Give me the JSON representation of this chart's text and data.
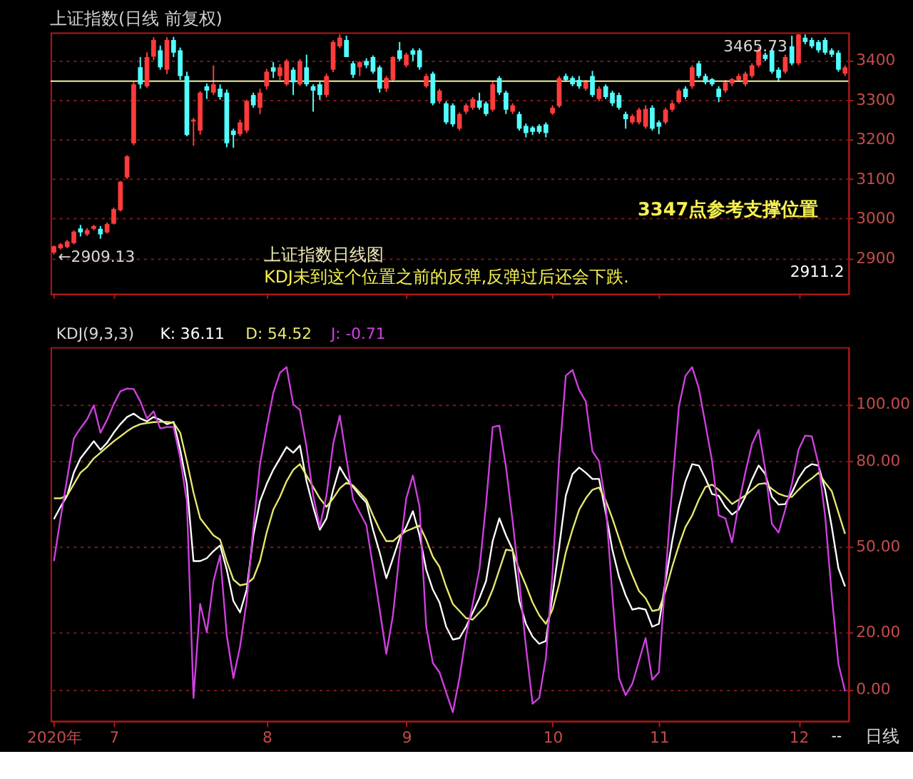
{
  "chart_data": [
    {
      "type": "candlestick",
      "title": "上证指数(日线 前复权)",
      "categories": [
        "2020年",
        null,
        null,
        null,
        null,
        null,
        null,
        null,
        null,
        "7",
        null,
        null,
        null,
        null,
        null,
        null,
        null,
        null,
        null,
        null,
        null,
        null,
        null,
        null,
        null,
        null,
        null,
        null,
        null,
        null,
        null,
        null,
        "8",
        null,
        null,
        null,
        null,
        null,
        null,
        null,
        null,
        null,
        null,
        null,
        null,
        null,
        null,
        null,
        null,
        null,
        null,
        null,
        null,
        "9",
        null,
        null,
        null,
        null,
        null,
        null,
        null,
        null,
        null,
        null,
        null,
        null,
        null,
        null,
        null,
        null,
        null,
        null,
        null,
        null,
        null,
        "10",
        null,
        null,
        null,
        null,
        null,
        null,
        null,
        null,
        null,
        null,
        null,
        null,
        null,
        null,
        null,
        "11",
        null,
        null,
        null,
        null,
        null,
        null,
        null,
        null,
        null,
        null,
        null,
        null,
        null,
        null,
        null,
        null,
        null,
        null,
        null,
        null,
        "12",
        null,
        null,
        null,
        null,
        null,
        null,
        null
      ],
      "ohlc": [
        [
          2914,
          2932,
          2909.13,
          2930
        ],
        [
          2925,
          2938,
          2922,
          2935
        ],
        [
          2928,
          2946,
          2925,
          2942
        ],
        [
          2938,
          2970,
          2935,
          2967
        ],
        [
          2975,
          2984,
          2955,
          2965
        ],
        [
          2960,
          2976,
          2956,
          2971
        ],
        [
          2974,
          2984,
          2970,
          2981
        ],
        [
          2974,
          2981,
          2949,
          2960
        ],
        [
          2965,
          2990,
          2962,
          2986
        ],
        [
          2987,
          3028,
          2985,
          3024
        ],
        [
          3021,
          3095,
          3018,
          3093
        ],
        [
          3104,
          3160,
          3100,
          3157
        ],
        [
          3190,
          3345,
          3185,
          3339
        ],
        [
          3382,
          3408,
          3328,
          3339
        ],
        [
          3334,
          3420,
          3330,
          3408
        ],
        [
          3409,
          3458,
          3400,
          3451
        ],
        [
          3425,
          3437,
          3376,
          3382
        ],
        [
          3376,
          3458,
          3365,
          3451
        ],
        [
          3451,
          3459,
          3408,
          3419
        ],
        [
          3425,
          3432,
          3350,
          3360
        ],
        [
          3360,
          3371,
          3208,
          3211
        ],
        [
          3245,
          3254,
          3184,
          3250
        ],
        [
          3222,
          3322,
          3212,
          3318
        ],
        [
          3334,
          3341,
          3302,
          3323
        ],
        [
          3318,
          3387,
          3312,
          3339
        ],
        [
          3328,
          3339,
          3300,
          3307
        ],
        [
          3318,
          3326,
          3180,
          3190
        ],
        [
          3222,
          3227,
          3179,
          3211
        ],
        [
          3213,
          3250,
          3208,
          3243
        ],
        [
          3222,
          3300,
          3216,
          3297
        ],
        [
          3312,
          3318,
          3280,
          3286
        ],
        [
          3280,
          3328,
          3264,
          3318
        ],
        [
          3334,
          3378,
          3326,
          3371
        ],
        [
          3382,
          3395,
          3355,
          3371
        ],
        [
          3360,
          3390,
          3350,
          3382
        ],
        [
          3339,
          3403,
          3335,
          3398
        ],
        [
          3376,
          3382,
          3312,
          3344
        ],
        [
          3339,
          3403,
          3335,
          3398
        ],
        [
          3382,
          3414,
          3334,
          3339
        ],
        [
          3334,
          3339,
          3270,
          3323
        ],
        [
          3339,
          3345,
          3300,
          3312
        ],
        [
          3312,
          3366,
          3306,
          3360
        ],
        [
          3376,
          3450,
          3370,
          3446
        ],
        [
          3435,
          3465,
          3430,
          3457
        ],
        [
          3451,
          3462,
          3408,
          3408
        ],
        [
          3392,
          3398,
          3355,
          3363
        ],
        [
          3382,
          3398,
          3360,
          3395
        ],
        [
          3398,
          3405,
          3380,
          3387
        ],
        [
          3408,
          3412,
          3366,
          3371
        ],
        [
          3382,
          3387,
          3318,
          3328
        ],
        [
          3328,
          3360,
          3320,
          3355
        ],
        [
          3350,
          3410,
          3345,
          3408
        ],
        [
          3425,
          3446,
          3398,
          3403
        ],
        [
          3387,
          3419,
          3382,
          3414
        ],
        [
          3425,
          3430,
          3398,
          3414
        ],
        [
          3425,
          3430,
          3376,
          3382
        ],
        [
          3334,
          3366,
          3330,
          3360
        ],
        [
          3366,
          3371,
          3286,
          3291
        ],
        [
          3296,
          3328,
          3290,
          3323
        ],
        [
          3291,
          3296,
          3238,
          3243
        ],
        [
          3286,
          3291,
          3232,
          3238
        ],
        [
          3227,
          3268,
          3222,
          3264
        ],
        [
          3270,
          3291,
          3264,
          3286
        ],
        [
          3280,
          3307,
          3275,
          3302
        ],
        [
          3298,
          3318,
          3275,
          3280
        ],
        [
          3291,
          3296,
          3259,
          3264
        ],
        [
          3275,
          3345,
          3270,
          3339
        ],
        [
          3355,
          3360,
          3312,
          3318
        ],
        [
          3318,
          3323,
          3264,
          3275
        ],
        [
          3270,
          3291,
          3264,
          3286
        ],
        [
          3264,
          3270,
          3222,
          3227
        ],
        [
          3234,
          3240,
          3205,
          3216
        ],
        [
          3230,
          3234,
          3211,
          3219
        ],
        [
          3234,
          3238,
          3214,
          3219
        ],
        [
          3238,
          3243,
          3205,
          3216
        ],
        [
          3266,
          3286,
          3262,
          3280
        ],
        [
          3284,
          3360,
          3280,
          3355
        ],
        [
          3360,
          3366,
          3345,
          3350
        ],
        [
          3355,
          3360,
          3334,
          3339
        ],
        [
          3350,
          3360,
          3328,
          3334
        ],
        [
          3328,
          3350,
          3323,
          3345
        ],
        [
          3360,
          3373,
          3307,
          3312
        ],
        [
          3302,
          3334,
          3296,
          3328
        ],
        [
          3334,
          3339,
          3302,
          3307
        ],
        [
          3318,
          3323,
          3284,
          3291
        ],
        [
          3312,
          3318,
          3275,
          3280
        ],
        [
          3264,
          3270,
          3227,
          3251
        ],
        [
          3243,
          3264,
          3238,
          3259
        ],
        [
          3243,
          3280,
          3238,
          3275
        ],
        [
          3232,
          3286,
          3227,
          3277
        ],
        [
          3280,
          3286,
          3222,
          3227
        ],
        [
          3243,
          3248,
          3213,
          3232
        ],
        [
          3243,
          3280,
          3238,
          3275
        ],
        [
          3275,
          3296,
          3270,
          3291
        ],
        [
          3294,
          3328,
          3290,
          3323
        ],
        [
          3328,
          3334,
          3302,
          3307
        ],
        [
          3334,
          3387,
          3328,
          3382
        ],
        [
          3392,
          3398,
          3355,
          3360
        ],
        [
          3360,
          3366,
          3339,
          3344
        ],
        [
          3352,
          3355,
          3334,
          3339
        ],
        [
          3328,
          3334,
          3294,
          3307
        ],
        [
          3323,
          3350,
          3318,
          3344
        ],
        [
          3341,
          3355,
          3334,
          3352
        ],
        [
          3350,
          3366,
          3345,
          3360
        ],
        [
          3339,
          3371,
          3334,
          3366
        ],
        [
          3360,
          3392,
          3355,
          3387
        ],
        [
          3387,
          3433,
          3382,
          3425
        ],
        [
          3414,
          3419,
          3398,
          3403
        ],
        [
          3425,
          3430,
          3366,
          3371
        ],
        [
          3376,
          3382,
          3345,
          3355
        ],
        [
          3371,
          3414,
          3366,
          3408
        ],
        [
          3435,
          3462,
          3387,
          3392
        ],
        [
          3392,
          3465.73,
          3387,
          3465
        ],
        [
          3457,
          3465,
          3440,
          3446
        ],
        [
          3451,
          3457,
          3430,
          3435
        ],
        [
          3446,
          3451,
          3419,
          3425
        ],
        [
          3451,
          3457,
          3414,
          3419
        ],
        [
          3425,
          3430,
          3408,
          3414
        ],
        [
          3419,
          3425,
          3371,
          3376
        ],
        [
          3366,
          3387,
          3360,
          3382
        ]
      ],
      "colors": [
        "#ff3b3b",
        "#ff3b3b",
        "#ff3b3b",
        "#ff3b3b",
        "#52ffff",
        "#ff3b3b",
        "#ff3b3b",
        "#52ffff",
        "#ff3b3b",
        "#ff3b3b",
        "#ff3b3b",
        "#ff3b3b",
        "#ff3b3b",
        "#52ffff",
        "#ff3b3b",
        "#ff3b3b",
        "#52ffff",
        "#ff3b3b",
        "#52ffff",
        "#52ffff",
        "#52ffff",
        "#ff3b3b",
        "#ff3b3b",
        "#52ffff",
        "#ff3b3b",
        "#52ffff",
        "#52ffff",
        "#52ffff",
        "#ff3b3b",
        "#ff3b3b",
        "#52ffff",
        "#ff3b3b",
        "#ff3b3b",
        "#52ffff",
        "#ff3b3b",
        "#ff3b3b",
        "#52ffff",
        "#ff3b3b",
        "#52ffff",
        "#52ffff",
        "#52ffff",
        "#ff3b3b",
        "#ff3b3b",
        "#ff3b3b",
        "#52ffff",
        "#52ffff",
        "#ff3b3b",
        "#52ffff",
        "#52ffff",
        "#52ffff",
        "#ff3b3b",
        "#ff3b3b",
        "#52ffff",
        "#ff3b3b",
        "#52ffff",
        "#52ffff",
        "#ff3b3b",
        "#52ffff",
        "#ff3b3b",
        "#52ffff",
        "#52ffff",
        "#ff3b3b",
        "#ff3b3b",
        "#ff3b3b",
        "#52ffff",
        "#52ffff",
        "#ff3b3b",
        "#52ffff",
        "#52ffff",
        "#ff3b3b",
        "#52ffff",
        "#52ffff",
        "#52ffff",
        "#52ffff",
        "#52ffff",
        "#ff3b3b",
        "#ff3b3b",
        "#52ffff",
        "#52ffff",
        "#52ffff",
        "#ff3b3b",
        "#52ffff",
        "#ff3b3b",
        "#52ffff",
        "#52ffff",
        "#52ffff",
        "#52ffff",
        "#ff3b3b",
        "#ff3b3b",
        "#ff3b3b",
        "#52ffff",
        "#52ffff",
        "#ff3b3b",
        "#ff3b3b",
        "#ff3b3b",
        "#52ffff",
        "#ff3b3b",
        "#52ffff",
        "#52ffff",
        "#52ffff",
        "#52ffff",
        "#ff3b3b",
        "#ff3b3b",
        "#ff3b3b",
        "#ff3b3b",
        "#ff3b3b",
        "#ff3b3b",
        "#52ffff",
        "#52ffff",
        "#52ffff",
        "#ff3b3b",
        "#52ffff",
        "#ff3b3b",
        "#52ffff",
        "#52ffff",
        "#52ffff",
        "#52ffff",
        "#52ffff",
        "#52ffff",
        "#ff3b3b"
      ],
      "ylim": [
        2810,
        3470
      ],
      "yticks": [
        2900,
        3000,
        3100,
        3200,
        3300,
        3400
      ],
      "grid": "y",
      "tick_labels": "y",
      "ref_lines": [
        {
          "axis": "y",
          "value": 3347,
          "color": "#f0f0a0"
        }
      ],
      "annotations": [
        {
          "text": "←2909.13",
          "x": "2020年",
          "y": 2909.13
        },
        {
          "text": "3465.73",
          "x": "12",
          "y": 3465.73
        },
        "2911.2",
        "3347点参考支撑位置",
        "上证指数日线图",
        "KDJ未到这个位置之前的反弹,反弹过后还会下跌."
      ]
    },
    {
      "type": "line",
      "title": "KDJ(9,3,3)",
      "categories": [
        "2020年",
        null,
        null,
        null,
        null,
        null,
        null,
        null,
        null,
        "7",
        null,
        null,
        null,
        null,
        null,
        null,
        null,
        null,
        null,
        null,
        null,
        null,
        null,
        null,
        null,
        null,
        null,
        null,
        null,
        null,
        null,
        null,
        "8",
        null,
        null,
        null,
        null,
        null,
        null,
        null,
        null,
        null,
        null,
        null,
        null,
        null,
        null,
        null,
        null,
        null,
        null,
        null,
        null,
        "9",
        null,
        null,
        null,
        null,
        null,
        null,
        null,
        null,
        null,
        null,
        null,
        null,
        null,
        null,
        null,
        null,
        null,
        null,
        null,
        null,
        null,
        "10",
        null,
        null,
        null,
        null,
        null,
        null,
        null,
        null,
        null,
        null,
        null,
        null,
        null,
        null,
        null,
        "11",
        null,
        null,
        null,
        null,
        null,
        null,
        null,
        null,
        null,
        null,
        null,
        null,
        null,
        null,
        null,
        null,
        null,
        null,
        null,
        null,
        "12",
        null,
        null,
        null,
        null,
        null,
        null,
        null
      ],
      "series": [
        {
          "name": "K: 36.11",
          "color": "#ffffff",
          "values": [
            59.7,
            64,
            68,
            76,
            81,
            84,
            87,
            84,
            86.5,
            90,
            93,
            95.5,
            96.7,
            95,
            94,
            95.5,
            94.5,
            93,
            93.8,
            84,
            72,
            45,
            45,
            46,
            48.5,
            50.5,
            42,
            31,
            27,
            35,
            54,
            66,
            72,
            77,
            81,
            85,
            83,
            85.5,
            73,
            64,
            56,
            60,
            70,
            78,
            74,
            71,
            68,
            65.5,
            56,
            48,
            39,
            46,
            53,
            57,
            62.5,
            54,
            42,
            35,
            30.5,
            22,
            17.5,
            18,
            22,
            27,
            32,
            38,
            52,
            60,
            54,
            49,
            31,
            23,
            18.5,
            16,
            17,
            33,
            50,
            68,
            75.5,
            77.8,
            76,
            73.8,
            73.8,
            62,
            49,
            39.5,
            33,
            28,
            28.5,
            28,
            22,
            23,
            38,
            52,
            64,
            73,
            79,
            78.5,
            74,
            68.5,
            67.9,
            64,
            61.3,
            63,
            67.6,
            73.6,
            78.5,
            75.5,
            67.5,
            64.8,
            65,
            69,
            74,
            77.5,
            79,
            78.5,
            70,
            57,
            42.5,
            36.11
          ]
        },
        {
          "name": "D: 54.52",
          "color": "#e8e870",
          "values": [
            67,
            67,
            68,
            72,
            76,
            78,
            81,
            83,
            85,
            87,
            88.7,
            90.5,
            92,
            93,
            93.4,
            93.7,
            93.8,
            93.8,
            93.5,
            90,
            80,
            69,
            60,
            57,
            54,
            52.5,
            45,
            38.5,
            36.5,
            37,
            39,
            45,
            55,
            63,
            67.5,
            73,
            77,
            79,
            75,
            71,
            67,
            64,
            67,
            70.5,
            72.5,
            71.5,
            69,
            66.5,
            61,
            56,
            52,
            52,
            54,
            55.5,
            56.5,
            57.5,
            52.5,
            46.5,
            43,
            36,
            30,
            27.5,
            25,
            24.5,
            27,
            29.5,
            35,
            42,
            49,
            48.6,
            42,
            36.5,
            30.5,
            26,
            23,
            28,
            37,
            48,
            56,
            63,
            67,
            70,
            70.8,
            66.3,
            60,
            53,
            46,
            40,
            34.5,
            32,
            27.5,
            28,
            34.5,
            43,
            50.5,
            57,
            61,
            66.5,
            71,
            71.8,
            70,
            67.6,
            65,
            66.5,
            68,
            70,
            72,
            72.3,
            70.3,
            68.6,
            67.8,
            67.5,
            70,
            72.3,
            74,
            76,
            72.5,
            69.5,
            62,
            54.52
          ]
        },
        {
          "name": "J: -0.71",
          "color": "#d040e0",
          "values": [
            45,
            60,
            74,
            88,
            91.6,
            94.7,
            99.6,
            90,
            94.5,
            100,
            104.5,
            105.5,
            105.3,
            101,
            95,
            97.5,
            91.5,
            92,
            92,
            81,
            66,
            -3,
            30,
            20,
            38,
            47,
            19,
            4,
            15,
            31,
            57,
            79,
            92,
            104,
            111,
            113,
            100,
            98,
            85,
            68,
            57,
            68,
            86,
            96,
            81,
            66.7,
            62,
            57.6,
            43,
            28,
            12.5,
            26,
            48,
            67,
            75,
            64,
            22,
            9.3,
            6,
            -1,
            -8,
            4,
            19,
            30,
            42,
            65,
            92,
            92.5,
            78,
            59,
            38,
            15,
            -5,
            -3,
            11,
            41,
            81,
            110,
            112,
            105,
            101,
            83.5,
            80,
            65,
            33,
            4,
            -2,
            2,
            10,
            18,
            3.4,
            6,
            40,
            71,
            99,
            110,
            113,
            105.6,
            93,
            80,
            61,
            60,
            51.6,
            65,
            76,
            86,
            91,
            77,
            58,
            55,
            63,
            72,
            84,
            89,
            88.7,
            79,
            61,
            33,
            9,
            -0.71
          ]
        }
      ],
      "ylim": [
        -11,
        120
      ],
      "yticks": [
        {
          "value": 0,
          "label": "0.00"
        },
        {
          "value": 20,
          "label": "20.00"
        },
        {
          "value": 50,
          "label": "50.00"
        },
        {
          "value": 80,
          "label": "80.00"
        },
        {
          "value": 100,
          "label": "100.00"
        }
      ],
      "grid": "y",
      "line_style": "solid",
      "marker": "none",
      "annotations": [
        "--",
        "日线"
      ]
    }
  ]
}
